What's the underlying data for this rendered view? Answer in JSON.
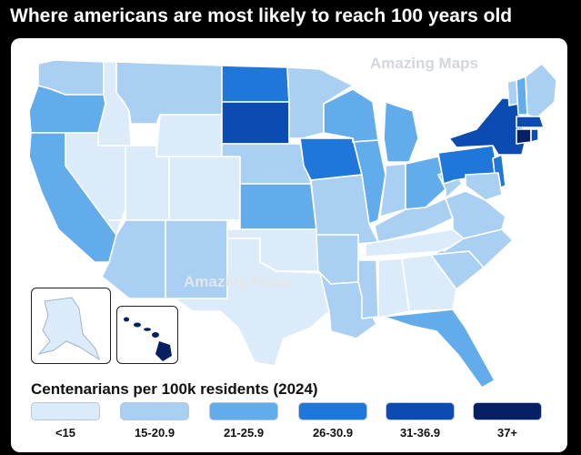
{
  "title": "Where americans are most likely to reach 100 years old",
  "watermarks": [
    "Amazing Maps",
    "Amazing Maps"
  ],
  "legend": {
    "title": "Centenarians per 100k residents (2024)",
    "items": [
      {
        "label": "<15",
        "color": "#dcebf9"
      },
      {
        "label": "15-20.9",
        "color": "#a9cff2"
      },
      {
        "label": "21-25.9",
        "color": "#62acec"
      },
      {
        "label": "26-30.9",
        "color": "#1f78d9"
      },
      {
        "label": "31-36.9",
        "color": "#0c4cb2"
      },
      {
        "label": "37+",
        "color": "#071f63"
      }
    ]
  }
}
